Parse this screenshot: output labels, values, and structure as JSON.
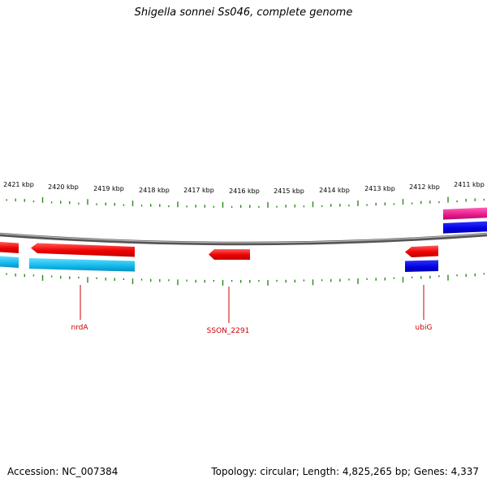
{
  "title": "Shigella sonnei Ss046, complete genome",
  "footer": {
    "accession": "Accession: NC_007384",
    "summary": "Topology: circular; Length: 4,825,265 bp; Genes: 4,337"
  },
  "colors": {
    "backbone": "#7a7a7a",
    "tick": "#2a8a1a",
    "gene_label": "#cc0000",
    "cds_forward": "#ff1a1a",
    "cds_reverse": "#ff1a1a",
    "cog_cyan": "#18c0ee",
    "cog_blue": "#0a0ae6",
    "cog_pink": "#e8228a"
  },
  "scale_labels": [
    "2421 kbp",
    "2420 kbp",
    "2419 kbp",
    "2418 kbp",
    "2417 kbp",
    "2416 kbp",
    "2415 kbp",
    "2414 kbp",
    "2413 kbp",
    "2412 kbp",
    "2411 kbp"
  ],
  "genes": [
    {
      "name": "nrdA",
      "strand": "reverse"
    },
    {
      "name": "SSON_2291",
      "strand": "reverse"
    },
    {
      "name": "ubiG",
      "strand": "reverse"
    }
  ]
}
